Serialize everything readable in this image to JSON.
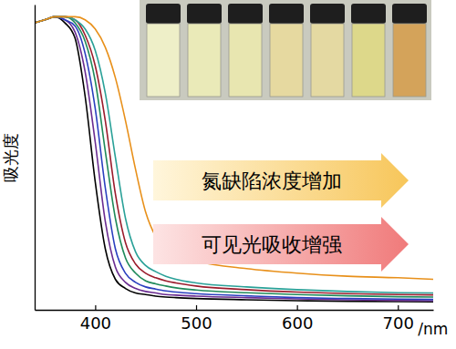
{
  "chart_data": {
    "type": "line",
    "ylabel": "吸光度",
    "xlabel": "/nm",
    "annotations": [
      "氮缺陷浓度增加",
      "可见光吸收增强"
    ],
    "x": [
      340,
      350,
      360,
      370,
      380,
      390,
      400,
      410,
      420,
      430,
      440,
      450,
      460,
      470,
      480,
      500,
      550,
      600,
      650,
      700,
      735
    ],
    "xlim": [
      340,
      735
    ],
    "xticks": [
      400,
      500,
      600,
      700
    ],
    "ylim": [
      0,
      1
    ],
    "tick_labels": "x",
    "grid": false,
    "series": [
      {
        "color": "#000000",
        "values": [
          0.94,
          0.95,
          0.96,
          0.94,
          0.89,
          0.7,
          0.42,
          0.2,
          0.1,
          0.07,
          0.055,
          0.05,
          0.045,
          0.042,
          0.04,
          0.037,
          0.033,
          0.03,
          0.028,
          0.027,
          0.026
        ]
      },
      {
        "color": "#6a2c91",
        "values": [
          0.94,
          0.95,
          0.96,
          0.95,
          0.91,
          0.78,
          0.55,
          0.29,
          0.14,
          0.09,
          0.07,
          0.06,
          0.055,
          0.05,
          0.048,
          0.045,
          0.04,
          0.036,
          0.033,
          0.031,
          0.03
        ]
      },
      {
        "color": "#2a3fbf",
        "values": [
          0.94,
          0.95,
          0.96,
          0.95,
          0.93,
          0.84,
          0.66,
          0.4,
          0.2,
          0.12,
          0.09,
          0.075,
          0.068,
          0.062,
          0.058,
          0.053,
          0.046,
          0.04,
          0.037,
          0.035,
          0.034
        ]
      },
      {
        "color": "#1f8a5a",
        "values": [
          0.94,
          0.95,
          0.96,
          0.96,
          0.94,
          0.88,
          0.75,
          0.52,
          0.3,
          0.17,
          0.12,
          0.095,
          0.085,
          0.078,
          0.072,
          0.065,
          0.056,
          0.05,
          0.046,
          0.043,
          0.042
        ]
      },
      {
        "color": "#9b1c2c",
        "values": [
          0.94,
          0.95,
          0.96,
          0.96,
          0.95,
          0.9,
          0.8,
          0.62,
          0.38,
          0.22,
          0.15,
          0.12,
          0.105,
          0.095,
          0.088,
          0.078,
          0.066,
          0.058,
          0.053,
          0.05,
          0.049
        ]
      },
      {
        "color": "#2aa198",
        "values": [
          0.94,
          0.95,
          0.96,
          0.96,
          0.95,
          0.92,
          0.85,
          0.71,
          0.5,
          0.3,
          0.19,
          0.145,
          0.125,
          0.11,
          0.1,
          0.088,
          0.075,
          0.066,
          0.06,
          0.056,
          0.055
        ]
      },
      {
        "color": "#e8901a",
        "values": [
          0.94,
          0.95,
          0.96,
          0.96,
          0.96,
          0.95,
          0.92,
          0.86,
          0.76,
          0.62,
          0.46,
          0.32,
          0.24,
          0.2,
          0.18,
          0.16,
          0.135,
          0.12,
          0.11,
          0.105,
          0.1
        ]
      }
    ]
  }
}
